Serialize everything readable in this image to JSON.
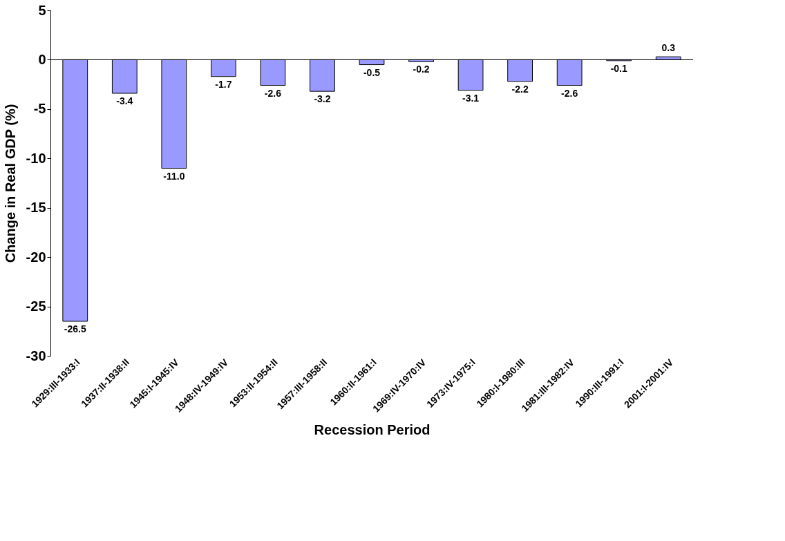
{
  "chart_data": {
    "type": "bar",
    "xlabel": "Recession Period",
    "ylabel": "Change in Real GDP (%)",
    "categories": [
      "1929:III-1933:I",
      "1937:II-1938:II",
      "1945:I-1945:IV",
      "1948:IV-1949:IV",
      "1953:II-1954:II",
      "1957:III-1958:II",
      "1960:II-1961:I",
      "1969:IV-1970:IV",
      "1973:IV-1975:I",
      "1980:I-1980:III",
      "1981:III-1982:IV",
      "1990:III-1991:I",
      "2001:I-2001:IV"
    ],
    "values": [
      -26.5,
      -3.4,
      -11.0,
      -1.7,
      -2.6,
      -3.2,
      -0.5,
      -0.2,
      -3.1,
      -2.2,
      -2.6,
      -0.1,
      0.3
    ],
    "value_labels": [
      "-26.5",
      "-3.4",
      "-11.0",
      "-1.7",
      "-2.6",
      "-3.2",
      "-0.5",
      "-0.2",
      "-3.1",
      "-2.2",
      "-2.6",
      "-0.1",
      "0.3"
    ],
    "color": "#9999ff",
    "ylim": [
      -30,
      5
    ],
    "yticks": [
      -30,
      -25,
      -20,
      -15,
      -10,
      -5,
      0,
      5
    ],
    "grid": false,
    "ref_lines": [
      {
        "axis": "y",
        "value": 0,
        "color": "#000000"
      }
    ]
  }
}
